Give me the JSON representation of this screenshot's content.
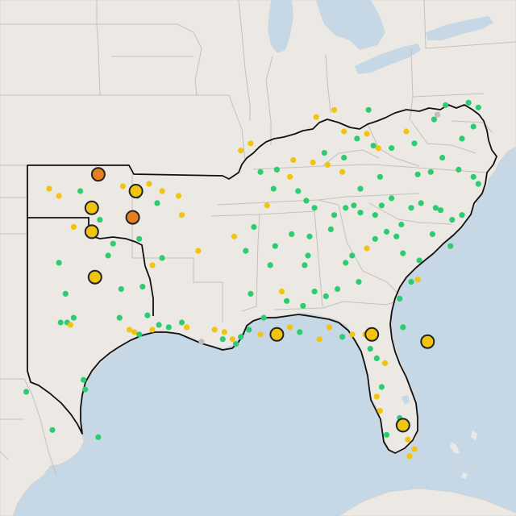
{
  "map": {
    "colors": {
      "water": "#c6d7e5",
      "land": "#ece9e5",
      "border_light": "#c4c0bb",
      "region_outline": "#111111",
      "good": "#2ecc71",
      "moderate": "#f1c40f",
      "unhealthy_sensitive": "#e67e22",
      "no_data": "#bdbdbd"
    },
    "stations_small": [
      {
        "lon": -102.5,
        "lat": 36.7,
        "s": "moderate"
      },
      {
        "lon": -101.9,
        "lat": 36.4,
        "s": "moderate"
      },
      {
        "lon": -100.6,
        "lat": 36.6,
        "s": "good"
      },
      {
        "lon": -98.0,
        "lat": 36.8,
        "s": "moderate"
      },
      {
        "lon": -97.1,
        "lat": 36.4,
        "s": "good"
      },
      {
        "lon": -96.4,
        "lat": 36.9,
        "s": "moderate"
      },
      {
        "lon": -95.6,
        "lat": 36.6,
        "s": "moderate"
      },
      {
        "lon": -95.9,
        "lat": 36.1,
        "s": "good"
      },
      {
        "lon": -101.0,
        "lat": 35.1,
        "s": "moderate"
      },
      {
        "lon": -99.4,
        "lat": 35.4,
        "s": "good"
      },
      {
        "lon": -97.0,
        "lat": 34.6,
        "s": "good"
      },
      {
        "lon": -98.6,
        "lat": 34.4,
        "s": "good"
      },
      {
        "lon": -98.9,
        "lat": 33.9,
        "s": "good"
      },
      {
        "lon": -96.2,
        "lat": 33.5,
        "s": "moderate"
      },
      {
        "lon": -95.6,
        "lat": 33.8,
        "s": "good"
      },
      {
        "lon": -94.4,
        "lat": 35.6,
        "s": "moderate"
      },
      {
        "lon": -93.4,
        "lat": 34.1,
        "s": "moderate"
      },
      {
        "lon": -91.2,
        "lat": 34.7,
        "s": "moderate"
      },
      {
        "lon": -99.6,
        "lat": 32.9,
        "s": "good"
      },
      {
        "lon": -98.1,
        "lat": 32.5,
        "s": "good"
      },
      {
        "lon": -96.8,
        "lat": 32.6,
        "s": "good"
      },
      {
        "lon": -96.5,
        "lat": 31.4,
        "s": "good"
      },
      {
        "lon": -96.2,
        "lat": 30.8,
        "s": "moderate"
      },
      {
        "lon": -95.8,
        "lat": 31.0,
        "s": "good"
      },
      {
        "lon": -94.4,
        "lat": 31.1,
        "s": "good"
      },
      {
        "lon": -95.2,
        "lat": 30.9,
        "s": "good"
      },
      {
        "lon": -94.1,
        "lat": 30.9,
        "s": "moderate"
      },
      {
        "lon": -93.2,
        "lat": 30.3,
        "s": "no_data"
      },
      {
        "lon": -92.4,
        "lat": 30.8,
        "s": "moderate"
      },
      {
        "lon": -91.8,
        "lat": 30.7,
        "s": "moderate"
      },
      {
        "lon": -91.3,
        "lat": 30.4,
        "s": "moderate"
      },
      {
        "lon": -91.1,
        "lat": 30.2,
        "s": "good"
      },
      {
        "lon": -90.8,
        "lat": 30.5,
        "s": "good"
      },
      {
        "lon": -90.3,
        "lat": 30.8,
        "s": "good"
      },
      {
        "lon": -89.6,
        "lat": 30.6,
        "s": "moderate"
      },
      {
        "lon": -88.7,
        "lat": 30.6,
        "s": "good"
      },
      {
        "lon": -87.8,
        "lat": 30.9,
        "s": "moderate"
      },
      {
        "lon": -87.2,
        "lat": 30.7,
        "s": "good"
      },
      {
        "lon": -85.4,
        "lat": 30.9,
        "s": "moderate"
      },
      {
        "lon": -86.0,
        "lat": 30.4,
        "s": "moderate"
      },
      {
        "lon": -84.6,
        "lat": 30.5,
        "s": "good"
      },
      {
        "lon": -84.0,
        "lat": 30.6,
        "s": "moderate"
      },
      {
        "lon": -83.2,
        "lat": 30.6,
        "s": "moderate"
      },
      {
        "lon": -82.9,
        "lat": 30.0,
        "s": "good"
      },
      {
        "lon": -82.5,
        "lat": 29.6,
        "s": "good"
      },
      {
        "lon": -82.0,
        "lat": 29.4,
        "s": "moderate"
      },
      {
        "lon": -82.2,
        "lat": 28.4,
        "s": "good"
      },
      {
        "lon": -82.5,
        "lat": 28.0,
        "s": "moderate"
      },
      {
        "lon": -82.3,
        "lat": 27.4,
        "s": "moderate"
      },
      {
        "lon": -81.1,
        "lat": 27.1,
        "s": "good"
      },
      {
        "lon": -81.9,
        "lat": 26.4,
        "s": "good"
      },
      {
        "lon": -80.6,
        "lat": 26.2,
        "s": "moderate"
      },
      {
        "lon": -80.2,
        "lat": 25.8,
        "s": "moderate"
      },
      {
        "lon": -80.5,
        "lat": 25.5,
        "s": "moderate"
      },
      {
        "lon": -80.9,
        "lat": 30.9,
        "s": "good"
      },
      {
        "lon": -81.1,
        "lat": 32.1,
        "s": "good"
      },
      {
        "lon": -80.0,
        "lat": 32.9,
        "s": "moderate"
      },
      {
        "lon": -80.4,
        "lat": 32.8,
        "s": "good"
      },
      {
        "lon": -79.9,
        "lat": 33.7,
        "s": "good"
      },
      {
        "lon": -80.9,
        "lat": 34.0,
        "s": "good"
      },
      {
        "lon": -81.3,
        "lat": 34.7,
        "s": "good"
      },
      {
        "lon": -81.9,
        "lat": 34.9,
        "s": "good"
      },
      {
        "lon": -82.6,
        "lat": 34.6,
        "s": "good"
      },
      {
        "lon": -83.1,
        "lat": 34.2,
        "s": "moderate"
      },
      {
        "lon": -84.0,
        "lat": 33.9,
        "s": "good"
      },
      {
        "lon": -84.4,
        "lat": 33.6,
        "s": "good"
      },
      {
        "lon": -83.6,
        "lat": 32.8,
        "s": "good"
      },
      {
        "lon": -84.9,
        "lat": 32.5,
        "s": "good"
      },
      {
        "lon": -85.6,
        "lat": 32.2,
        "s": "good"
      },
      {
        "lon": -86.3,
        "lat": 32.4,
        "s": "good"
      },
      {
        "lon": -86.9,
        "lat": 33.5,
        "s": "good"
      },
      {
        "lon": -86.7,
        "lat": 33.9,
        "s": "good"
      },
      {
        "lon": -86.6,
        "lat": 34.7,
        "s": "good"
      },
      {
        "lon": -87.7,
        "lat": 34.8,
        "s": "good"
      },
      {
        "lon": -88.7,
        "lat": 34.3,
        "s": "good"
      },
      {
        "lon": -89.0,
        "lat": 33.5,
        "s": "good"
      },
      {
        "lon": -88.3,
        "lat": 32.4,
        "s": "moderate"
      },
      {
        "lon": -88.0,
        "lat": 32.0,
        "s": "good"
      },
      {
        "lon": -87.0,
        "lat": 31.8,
        "s": "good"
      },
      {
        "lon": -90.2,
        "lat": 32.3,
        "s": "good"
      },
      {
        "lon": -89.4,
        "lat": 31.3,
        "s": "good"
      },
      {
        "lon": -90.5,
        "lat": 34.1,
        "s": "good"
      },
      {
        "lon": -90.0,
        "lat": 35.1,
        "s": "good"
      },
      {
        "lon": -89.2,
        "lat": 36.0,
        "s": "moderate"
      },
      {
        "lon": -88.8,
        "lat": 36.7,
        "s": "good"
      },
      {
        "lon": -87.8,
        "lat": 37.2,
        "s": "moderate"
      },
      {
        "lon": -87.3,
        "lat": 36.6,
        "s": "good"
      },
      {
        "lon": -86.8,
        "lat": 36.2,
        "s": "good"
      },
      {
        "lon": -86.3,
        "lat": 35.9,
        "s": "good"
      },
      {
        "lon": -85.3,
        "lat": 35.0,
        "s": "good"
      },
      {
        "lon": -85.1,
        "lat": 35.6,
        "s": "good"
      },
      {
        "lon": -84.4,
        "lat": 35.9,
        "s": "good"
      },
      {
        "lon": -83.9,
        "lat": 36.0,
        "s": "good"
      },
      {
        "lon": -83.5,
        "lat": 35.7,
        "s": "good"
      },
      {
        "lon": -82.6,
        "lat": 35.6,
        "s": "good"
      },
      {
        "lon": -82.2,
        "lat": 36.0,
        "s": "good"
      },
      {
        "lon": -81.6,
        "lat": 36.3,
        "s": "good"
      },
      {
        "lon": -81.0,
        "lat": 35.2,
        "s": "good"
      },
      {
        "lon": -80.4,
        "lat": 35.9,
        "s": "good"
      },
      {
        "lon": -79.8,
        "lat": 36.1,
        "s": "good"
      },
      {
        "lon": -78.9,
        "lat": 35.9,
        "s": "good"
      },
      {
        "lon": -78.6,
        "lat": 35.8,
        "s": "good"
      },
      {
        "lon": -77.9,
        "lat": 35.4,
        "s": "good"
      },
      {
        "lon": -77.3,
        "lat": 35.6,
        "s": "good"
      },
      {
        "lon": -79.1,
        "lat": 34.8,
        "s": "good"
      },
      {
        "lon": -78.0,
        "lat": 34.3,
        "s": "good"
      },
      {
        "lon": -80.0,
        "lat": 37.3,
        "s": "good"
      },
      {
        "lon": -79.2,
        "lat": 37.4,
        "s": "good"
      },
      {
        "lon": -78.5,
        "lat": 38.0,
        "s": "good"
      },
      {
        "lon": -77.5,
        "lat": 37.5,
        "s": "good"
      },
      {
        "lon": -76.3,
        "lat": 36.9,
        "s": "good"
      },
      {
        "lon": -76.6,
        "lat": 37.2,
        "s": "good"
      },
      {
        "lon": -77.3,
        "lat": 38.8,
        "s": "good"
      },
      {
        "lon": -78.3,
        "lat": 40.2,
        "s": "good"
      },
      {
        "lon": -76.6,
        "lat": 39.3,
        "s": "good"
      },
      {
        "lon": -76.9,
        "lat": 40.3,
        "s": "good"
      },
      {
        "lon": -76.3,
        "lat": 40.1,
        "s": "good"
      },
      {
        "lon": -79.0,
        "lat": 39.6,
        "s": "good"
      },
      {
        "lon": -78.8,
        "lat": 39.8,
        "s": "no_data"
      },
      {
        "lon": -80.7,
        "lat": 39.1,
        "s": "moderate"
      },
      {
        "lon": -81.6,
        "lat": 38.4,
        "s": "good"
      },
      {
        "lon": -80.2,
        "lat": 38.6,
        "s": "good"
      },
      {
        "lon": -82.7,
        "lat": 38.5,
        "s": "good"
      },
      {
        "lon": -83.1,
        "lat": 39.0,
        "s": "moderate"
      },
      {
        "lon": -82.4,
        "lat": 38.4,
        "s": "moderate"
      },
      {
        "lon": -83.7,
        "lat": 38.8,
        "s": "good"
      },
      {
        "lon": -84.5,
        "lat": 39.1,
        "s": "moderate"
      },
      {
        "lon": -84.5,
        "lat": 38.0,
        "s": "good"
      },
      {
        "lon": -85.7,
        "lat": 38.2,
        "s": "good"
      },
      {
        "lon": -84.6,
        "lat": 37.4,
        "s": "moderate"
      },
      {
        "lon": -85.5,
        "lat": 37.7,
        "s": "moderate"
      },
      {
        "lon": -86.4,
        "lat": 37.8,
        "s": "moderate"
      },
      {
        "lon": -83.5,
        "lat": 36.7,
        "s": "good"
      },
      {
        "lon": -82.3,
        "lat": 37.2,
        "s": "good"
      },
      {
        "lon": -85.1,
        "lat": 40.0,
        "s": "moderate"
      },
      {
        "lon": -83.0,
        "lat": 40.0,
        "s": "good"
      },
      {
        "lon": -86.2,
        "lat": 39.7,
        "s": "moderate"
      },
      {
        "lon": -87.6,
        "lat": 37.9,
        "s": "moderate"
      },
      {
        "lon": -88.6,
        "lat": 37.5,
        "s": "good"
      },
      {
        "lon": -90.2,
        "lat": 38.6,
        "s": "moderate"
      },
      {
        "lon": -89.6,
        "lat": 37.4,
        "s": "good"
      },
      {
        "lon": -90.8,
        "lat": 38.3,
        "s": "moderate"
      },
      {
        "lon": -94.6,
        "lat": 36.4,
        "s": "moderate"
      },
      {
        "lon": -101.9,
        "lat": 33.6,
        "s": "good"
      },
      {
        "lon": -101.5,
        "lat": 32.3,
        "s": "good"
      },
      {
        "lon": -101.0,
        "lat": 31.3,
        "s": "good"
      },
      {
        "lon": -101.8,
        "lat": 31.1,
        "s": "good"
      },
      {
        "lon": -101.4,
        "lat": 31.1,
        "s": "good"
      },
      {
        "lon": -101.2,
        "lat": 31.0,
        "s": "moderate"
      },
      {
        "lon": -100.4,
        "lat": 28.7,
        "s": "good"
      },
      {
        "lon": -100.3,
        "lat": 28.3,
        "s": "good"
      },
      {
        "lon": -103.9,
        "lat": 28.2,
        "s": "good"
      },
      {
        "lon": -102.3,
        "lat": 26.6,
        "s": "good"
      },
      {
        "lon": -99.5,
        "lat": 26.3,
        "s": "good"
      },
      {
        "lon": -98.2,
        "lat": 31.3,
        "s": "good"
      },
      {
        "lon": -97.6,
        "lat": 30.8,
        "s": "moderate"
      },
      {
        "lon": -97.3,
        "lat": 30.7,
        "s": "moderate"
      },
      {
        "lon": -97.0,
        "lat": 30.6,
        "s": "good"
      },
      {
        "lon": -91.9,
        "lat": 30.4,
        "s": "good"
      }
    ],
    "stations_large": [
      {
        "lon": -99.5,
        "lat": 37.3,
        "s": "unhealthy_sensitive"
      },
      {
        "lon": -97.2,
        "lat": 36.6,
        "s": "moderate"
      },
      {
        "lon": -99.9,
        "lat": 35.9,
        "s": "moderate"
      },
      {
        "lon": -97.4,
        "lat": 35.5,
        "s": "unhealthy_sensitive"
      },
      {
        "lon": -99.9,
        "lat": 34.9,
        "s": "moderate"
      },
      {
        "lon": -99.7,
        "lat": 33.0,
        "s": "moderate"
      },
      {
        "lon": -88.6,
        "lat": 30.6,
        "s": "moderate"
      },
      {
        "lon": -82.8,
        "lat": 30.6,
        "s": "moderate"
      },
      {
        "lon": -79.4,
        "lat": 30.3,
        "s": "moderate"
      },
      {
        "lon": -80.9,
        "lat": 26.8,
        "s": "moderate"
      }
    ]
  }
}
